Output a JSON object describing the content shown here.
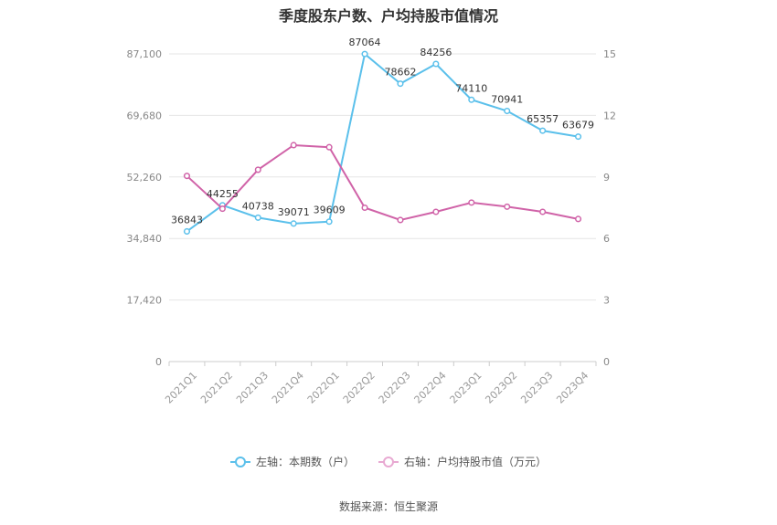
{
  "chart_data": {
    "type": "line",
    "title": "季度股东户数、户均持股市值情况",
    "categories": [
      "2021Q1",
      "2021Q2",
      "2021Q3",
      "2021Q4",
      "2022Q1",
      "2022Q2",
      "2022Q3",
      "2022Q4",
      "2023Q1",
      "2023Q2",
      "2023Q3",
      "2023Q4"
    ],
    "y_left": {
      "ticks": [
        "0",
        "17,420",
        "34,840",
        "52,260",
        "69,680",
        "87,100"
      ],
      "range": [
        0,
        87100
      ]
    },
    "y_right": {
      "ticks": [
        "0",
        "3",
        "6",
        "9",
        "12",
        "15"
      ],
      "range": [
        0,
        15
      ]
    },
    "series": [
      {
        "name": "左轴：本期数（户）",
        "axis": "left",
        "color": "#5bc0eb",
        "values": [
          36843,
          44255,
          40738,
          39071,
          39609,
          87064,
          78662,
          84256,
          74110,
          70941,
          65357,
          63679
        ],
        "labels": [
          "36843",
          "44255",
          "40738",
          "39071",
          "39609",
          "87064",
          "78662",
          "84256",
          "74110",
          "70941",
          "65357",
          "63679"
        ]
      },
      {
        "name": "右轴：户均持股市值（万元）",
        "axis": "right",
        "color": "#d063a8",
        "values": [
          9.05,
          7.45,
          9.35,
          10.55,
          10.45,
          7.5,
          6.9,
          7.3,
          7.75,
          7.55,
          7.3,
          6.95
        ]
      }
    ],
    "grid": true,
    "legend_position": "bottom"
  },
  "source": "数据来源：恒生聚源"
}
